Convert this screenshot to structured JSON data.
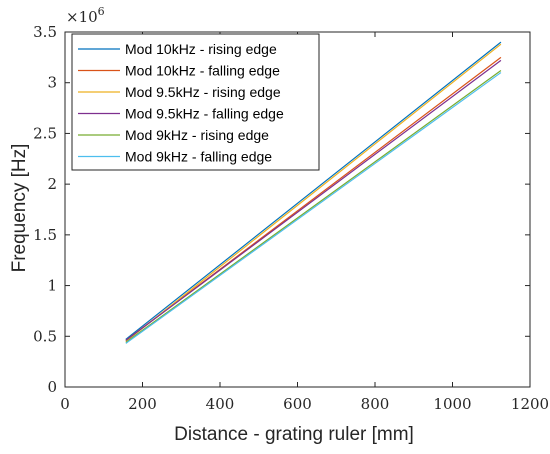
{
  "chart_data": {
    "type": "line",
    "xlabel": "Distance - grating ruler [mm]",
    "ylabel": "Frequency [Hz]",
    "xlim": [
      0,
      1200
    ],
    "ylim": [
      0,
      3.5
    ],
    "y_multiplier": "×10",
    "y_multiplier_exponent": "6",
    "xticks": [
      "0",
      "200",
      "400",
      "600",
      "800",
      "1000",
      "1200"
    ],
    "yticks": [
      "0",
      "0.5",
      "1",
      "1.5",
      "2",
      "2.5",
      "3",
      "3.5"
    ],
    "grid": false,
    "legend_position": "top-left",
    "series": [
      {
        "name": "Mod 10kHz - rising edge",
        "color": "#0072BD",
        "x": [
          157,
          1125
        ],
        "y": [
          0.47,
          3.4
        ]
      },
      {
        "name": "Mod 10kHz - falling edge",
        "color": "#D95319",
        "x": [
          157,
          1125
        ],
        "y": [
          0.46,
          3.25
        ]
      },
      {
        "name": "Mod 9.5kHz - rising edge",
        "color": "#EDB120",
        "x": [
          157,
          1125
        ],
        "y": [
          0.45,
          3.38
        ]
      },
      {
        "name": "Mod 9.5kHz - falling edge",
        "color": "#7E2F8E",
        "x": [
          157,
          1125
        ],
        "y": [
          0.46,
          3.22
        ]
      },
      {
        "name": "Mod 9kHz - rising edge",
        "color": "#77AC30",
        "x": [
          157,
          1125
        ],
        "y": [
          0.44,
          3.12
        ]
      },
      {
        "name": "Mod 9kHz - falling edge",
        "color": "#4DBEEE",
        "x": [
          157,
          1125
        ],
        "y": [
          0.43,
          3.1
        ]
      }
    ]
  }
}
